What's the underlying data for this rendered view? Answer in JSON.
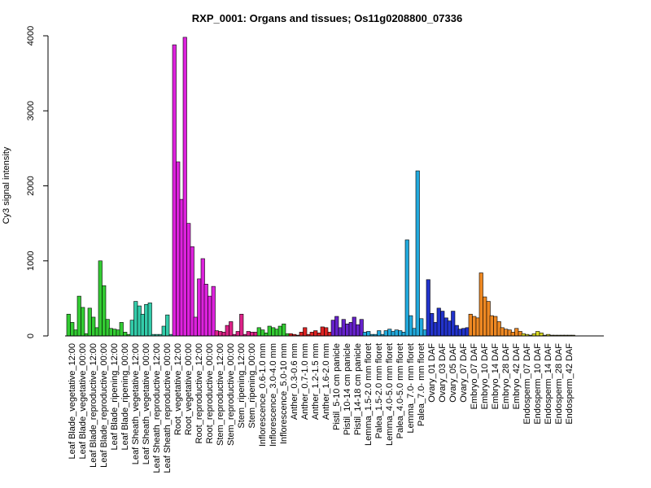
{
  "chart_data": {
    "type": "bar",
    "title": "RXP_0001: Organs and tissues; Os11g0208800_07336",
    "xlabel": "",
    "ylabel": "Cy3 signal intensity",
    "ylim": [
      0,
      4000
    ],
    "yticks": [
      0,
      1000,
      2000,
      3000,
      4000
    ],
    "grid": false,
    "legend": "none",
    "groups": [
      {
        "label": "Leaf Blade_vegetative_12:00",
        "color": "#33cc33",
        "values": [
          290,
          180,
          80
        ]
      },
      {
        "label": "Leaf Blade_vegetative_00:00",
        "color": "#33cc33",
        "values": [
          530,
          380,
          30
        ]
      },
      {
        "label": "Leaf Blade_reproductive_12:00",
        "color": "#33cc33",
        "values": [
          370,
          250,
          110
        ]
      },
      {
        "label": "Leaf Blade_reproductive_00:00",
        "color": "#33cc33",
        "values": [
          1000,
          670,
          220
        ]
      },
      {
        "label": "Leaf Blade_ripening_12:00",
        "color": "#33cc33",
        "values": [
          100,
          90,
          80
        ]
      },
      {
        "label": "Leaf Blade_ripening_00:00",
        "color": "#33cc33",
        "values": [
          180,
          50,
          20
        ]
      },
      {
        "label": "Leaf Sheath_vegetative_12:00",
        "color": "#33ccaa",
        "values": [
          210,
          460,
          400
        ]
      },
      {
        "label": "Leaf Sheath_vegetative_00:00",
        "color": "#33ccaa",
        "values": [
          290,
          420,
          440
        ]
      },
      {
        "label": "Leaf Sheath_reproductive_12:00",
        "color": "#33ccaa",
        "values": [
          20,
          20,
          20
        ]
      },
      {
        "label": "Leaf Sheath_reproductive_00:00",
        "color": "#33ccaa",
        "values": [
          130,
          280,
          20
        ]
      },
      {
        "label": "Root_vegetative_12:00",
        "color": "#dd22dd",
        "values": [
          3880,
          2320,
          1820
        ]
      },
      {
        "label": "Root_vegetative_00:00",
        "color": "#dd22dd",
        "values": [
          3980,
          1500,
          1190
        ]
      },
      {
        "label": "Root_reproductive_12:00",
        "color": "#dd22dd",
        "values": [
          250,
          760,
          1030
        ]
      },
      {
        "label": "Root_reproductive_00:00",
        "color": "#dd22dd",
        "values": [
          690,
          530,
          660
        ]
      },
      {
        "label": "Stem_reproductive_12:00",
        "color": "#dd2288",
        "values": [
          70,
          60,
          50
        ]
      },
      {
        "label": "Stem_reproductive_00:00",
        "color": "#dd2288",
        "values": [
          140,
          190,
          20
        ]
      },
      {
        "label": "Stem_ripening_12:00",
        "color": "#dd2288",
        "values": [
          60,
          290,
          20
        ]
      },
      {
        "label": "Stem_ripening_00:00",
        "color": "#dd2288",
        "values": [
          60,
          50,
          50
        ]
      },
      {
        "label": "Inflorescence_0.6-1.0 mm",
        "color": "#33cc33",
        "values": [
          110,
          80,
          40
        ]
      },
      {
        "label": "Inflorescence_3.0-4.0 mm",
        "color": "#33cc33",
        "values": [
          130,
          110,
          90
        ]
      },
      {
        "label": "Inflorescence_5.0-10 mm",
        "color": "#33cc33",
        "values": [
          130,
          160,
          30
        ]
      },
      {
        "label": "Anther_0.3-0.6 mm",
        "color": "#dd2222",
        "values": [
          30,
          20,
          10
        ]
      },
      {
        "label": "Anther_0.7-1.0 mm",
        "color": "#dd2222",
        "values": [
          50,
          110,
          20
        ]
      },
      {
        "label": "Anther_1.2-1.5 mm",
        "color": "#dd2222",
        "values": [
          50,
          70,
          40
        ]
      },
      {
        "label": "Anther_1.6-2.0 mm",
        "color": "#dd2222",
        "values": [
          120,
          110,
          50
        ]
      },
      {
        "label": "Pistil_5-10 cm panicle",
        "color": "#6622cc",
        "values": [
          210,
          260,
          110
        ]
      },
      {
        "label": "Pistil_10-14 cm panicle",
        "color": "#6622cc",
        "values": [
          220,
          160,
          180
        ]
      },
      {
        "label": "Pistil_14-18 cm panicle",
        "color": "#6622cc",
        "values": [
          250,
          150,
          220
        ]
      },
      {
        "label": "Lemma_1.5-2.0 mm floret",
        "color": "#22aadd",
        "values": [
          50,
          60,
          20
        ]
      },
      {
        "label": "Palea_1.5-2.0 mm floret",
        "color": "#22aadd",
        "values": [
          20,
          70,
          20
        ]
      },
      {
        "label": "Lemma_4.0-5.0 mm floret",
        "color": "#22aadd",
        "values": [
          70,
          90,
          60
        ]
      },
      {
        "label": "Palea_4.0-5.0 mm floret",
        "color": "#22aadd",
        "values": [
          80,
          70,
          50
        ]
      },
      {
        "label": "Lemma_7.0- mm floret",
        "color": "#22aadd",
        "values": [
          1280,
          270,
          100
        ]
      },
      {
        "label": "Palea_7.0- mm floret",
        "color": "#22aadd",
        "values": [
          2200,
          230,
          80
        ]
      },
      {
        "label": "Ovary_01 DAF",
        "color": "#2233cc",
        "values": [
          750,
          300,
          180
        ]
      },
      {
        "label": "Ovary_03 DAF",
        "color": "#2233cc",
        "values": [
          370,
          330,
          240
        ]
      },
      {
        "label": "Ovary_05 DAF",
        "color": "#2233cc",
        "values": [
          200,
          330,
          140
        ]
      },
      {
        "label": "Ovary_07 DAF",
        "color": "#2233cc",
        "values": [
          90,
          100,
          110
        ]
      },
      {
        "label": "Embryo_07 DAF",
        "color": "#ee8822",
        "values": [
          290,
          260,
          240
        ]
      },
      {
        "label": "Embryo_10 DAF",
        "color": "#ee8822",
        "values": [
          840,
          520,
          460
        ]
      },
      {
        "label": "Embryo_14 DAF",
        "color": "#ee8822",
        "values": [
          270,
          260,
          190
        ]
      },
      {
        "label": "Embryo_28 DAF",
        "color": "#ee8822",
        "values": [
          110,
          90,
          80
        ]
      },
      {
        "label": "Embryo_42 DAF",
        "color": "#ee8822",
        "values": [
          50,
          100,
          60
        ]
      },
      {
        "label": "Endosperm_07 DAF",
        "color": "#dddd22",
        "values": [
          30,
          20,
          10
        ]
      },
      {
        "label": "Endosperm_10 DAF",
        "color": "#dddd22",
        "values": [
          30,
          60,
          40
        ]
      },
      {
        "label": "Endosperm_14 DAF",
        "color": "#dddd22",
        "values": [
          10,
          20,
          10
        ]
      },
      {
        "label": "Endosperm_28 DAF",
        "color": "#dddd22",
        "values": [
          10,
          10,
          10
        ]
      },
      {
        "label": "Endosperm_42 DAF",
        "color": "#dddd22",
        "values": [
          10,
          10,
          10
        ]
      }
    ]
  }
}
